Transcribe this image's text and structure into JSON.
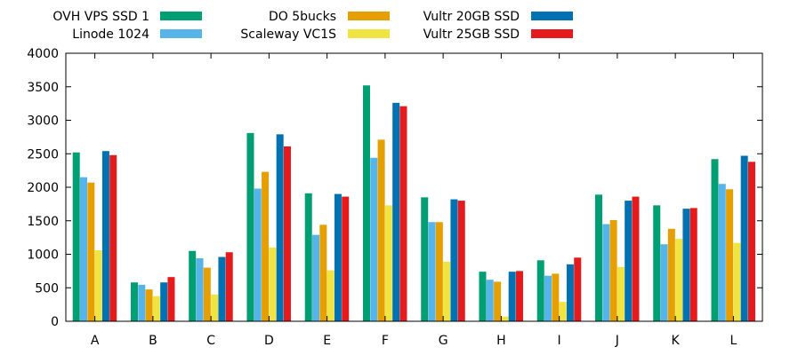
{
  "chart_data": {
    "type": "bar",
    "title": "",
    "xlabel": "",
    "ylabel": "",
    "ylim": [
      0,
      4000
    ],
    "yticks": [
      0,
      500,
      1000,
      1500,
      2000,
      2500,
      3000,
      3500,
      4000
    ],
    "grid": false,
    "legend_position": "top",
    "categories": [
      "A",
      "B",
      "C",
      "D",
      "E",
      "F",
      "G",
      "H",
      "I",
      "J",
      "K",
      "L"
    ],
    "series": [
      {
        "name": "OVH VPS SSD 1",
        "color": "#009e73",
        "values": [
          2520,
          580,
          1050,
          2810,
          1910,
          3520,
          1850,
          740,
          910,
          1890,
          1730,
          2420
        ]
      },
      {
        "name": "Linode 1024",
        "color": "#56b4e9",
        "values": [
          2150,
          545,
          940,
          1980,
          1290,
          2440,
          1480,
          620,
          680,
          1450,
          1150,
          2050
        ]
      },
      {
        "name": "DO 5bucks",
        "color": "#e69f00",
        "values": [
          2070,
          475,
          800,
          2230,
          1440,
          2710,
          1480,
          590,
          710,
          1510,
          1380,
          1970
        ]
      },
      {
        "name": "Scaleway VC1S",
        "color": "#f0e442",
        "values": [
          1060,
          375,
          400,
          1100,
          760,
          1730,
          890,
          70,
          290,
          810,
          1230,
          1170
        ]
      },
      {
        "name": "Vultr 20GB SSD",
        "color": "#0072b2",
        "values": [
          2540,
          580,
          960,
          2790,
          1900,
          3260,
          1820,
          740,
          850,
          1800,
          1680,
          2470
        ]
      },
      {
        "name": "Vultr 25GB SSD",
        "color": "#e41a1c",
        "values": [
          2480,
          660,
          1030,
          2610,
          1860,
          3210,
          1800,
          750,
          950,
          1860,
          1690,
          2380
        ]
      }
    ]
  }
}
